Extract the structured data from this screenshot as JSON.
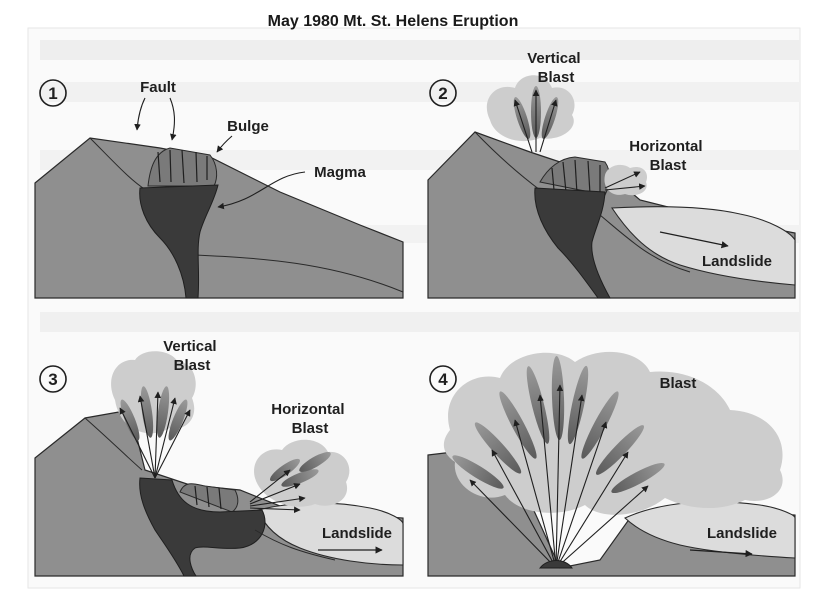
{
  "title": "May 1980 Mt. St. Helens Eruption",
  "panels": [
    {
      "number": "1",
      "labels": {
        "fault": "Fault",
        "bulge": "Bulge",
        "magma": "Magma"
      }
    },
    {
      "number": "2",
      "labels": {
        "vertical_blast": "Vertical Blast",
        "horizontal_blast": "Horizontal Blast",
        "landslide": "Landslide"
      }
    },
    {
      "number": "3",
      "labels": {
        "vertical_blast": "Vertical Blast",
        "horizontal_blast": "Horizontal Blast",
        "landslide": "Landslide"
      }
    },
    {
      "number": "4",
      "labels": {
        "blast": "Blast",
        "landslide": "Landslide"
      }
    }
  ],
  "colors": {
    "mountain": "#8f8f8f",
    "magma": "#3a3a3a",
    "landslide": "#dcdcdc",
    "cloud": "#cdcdcd",
    "plume": "#7d7d7d",
    "panel_bg": "#ededed",
    "line": "#2a2a2a"
  }
}
